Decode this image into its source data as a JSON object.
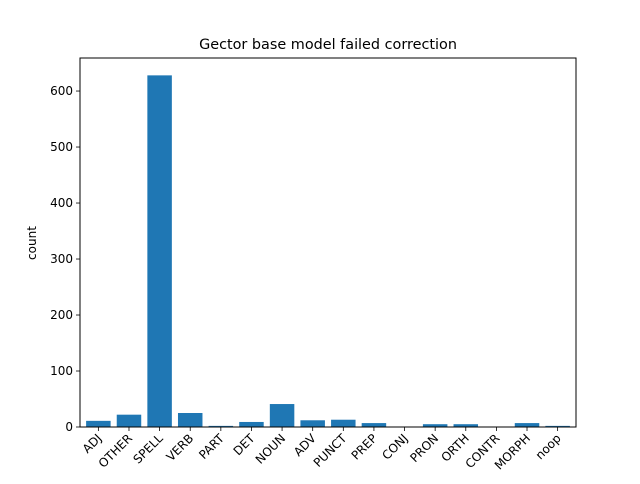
{
  "chart_data": {
    "type": "bar",
    "title": "Gector base model failed correction",
    "xlabel": "",
    "ylabel": "count",
    "categories": [
      "ADJ",
      "OTHER",
      "SPELL",
      "VERB",
      "PART",
      "DET",
      "NOUN",
      "ADV",
      "PUNCT",
      "PREP",
      "CONJ",
      "PRON",
      "ORTH",
      "CONTR",
      "MORPH",
      "noop"
    ],
    "values": [
      11,
      22,
      628,
      25,
      2,
      9,
      41,
      12,
      13,
      7,
      0,
      5,
      5,
      0,
      7,
      2
    ],
    "ylim": [
      0,
      659
    ],
    "yticks": [
      0,
      100,
      200,
      300,
      400,
      500,
      600
    ],
    "bar_color": "#1f77b4",
    "grid": false,
    "legend": "none"
  }
}
